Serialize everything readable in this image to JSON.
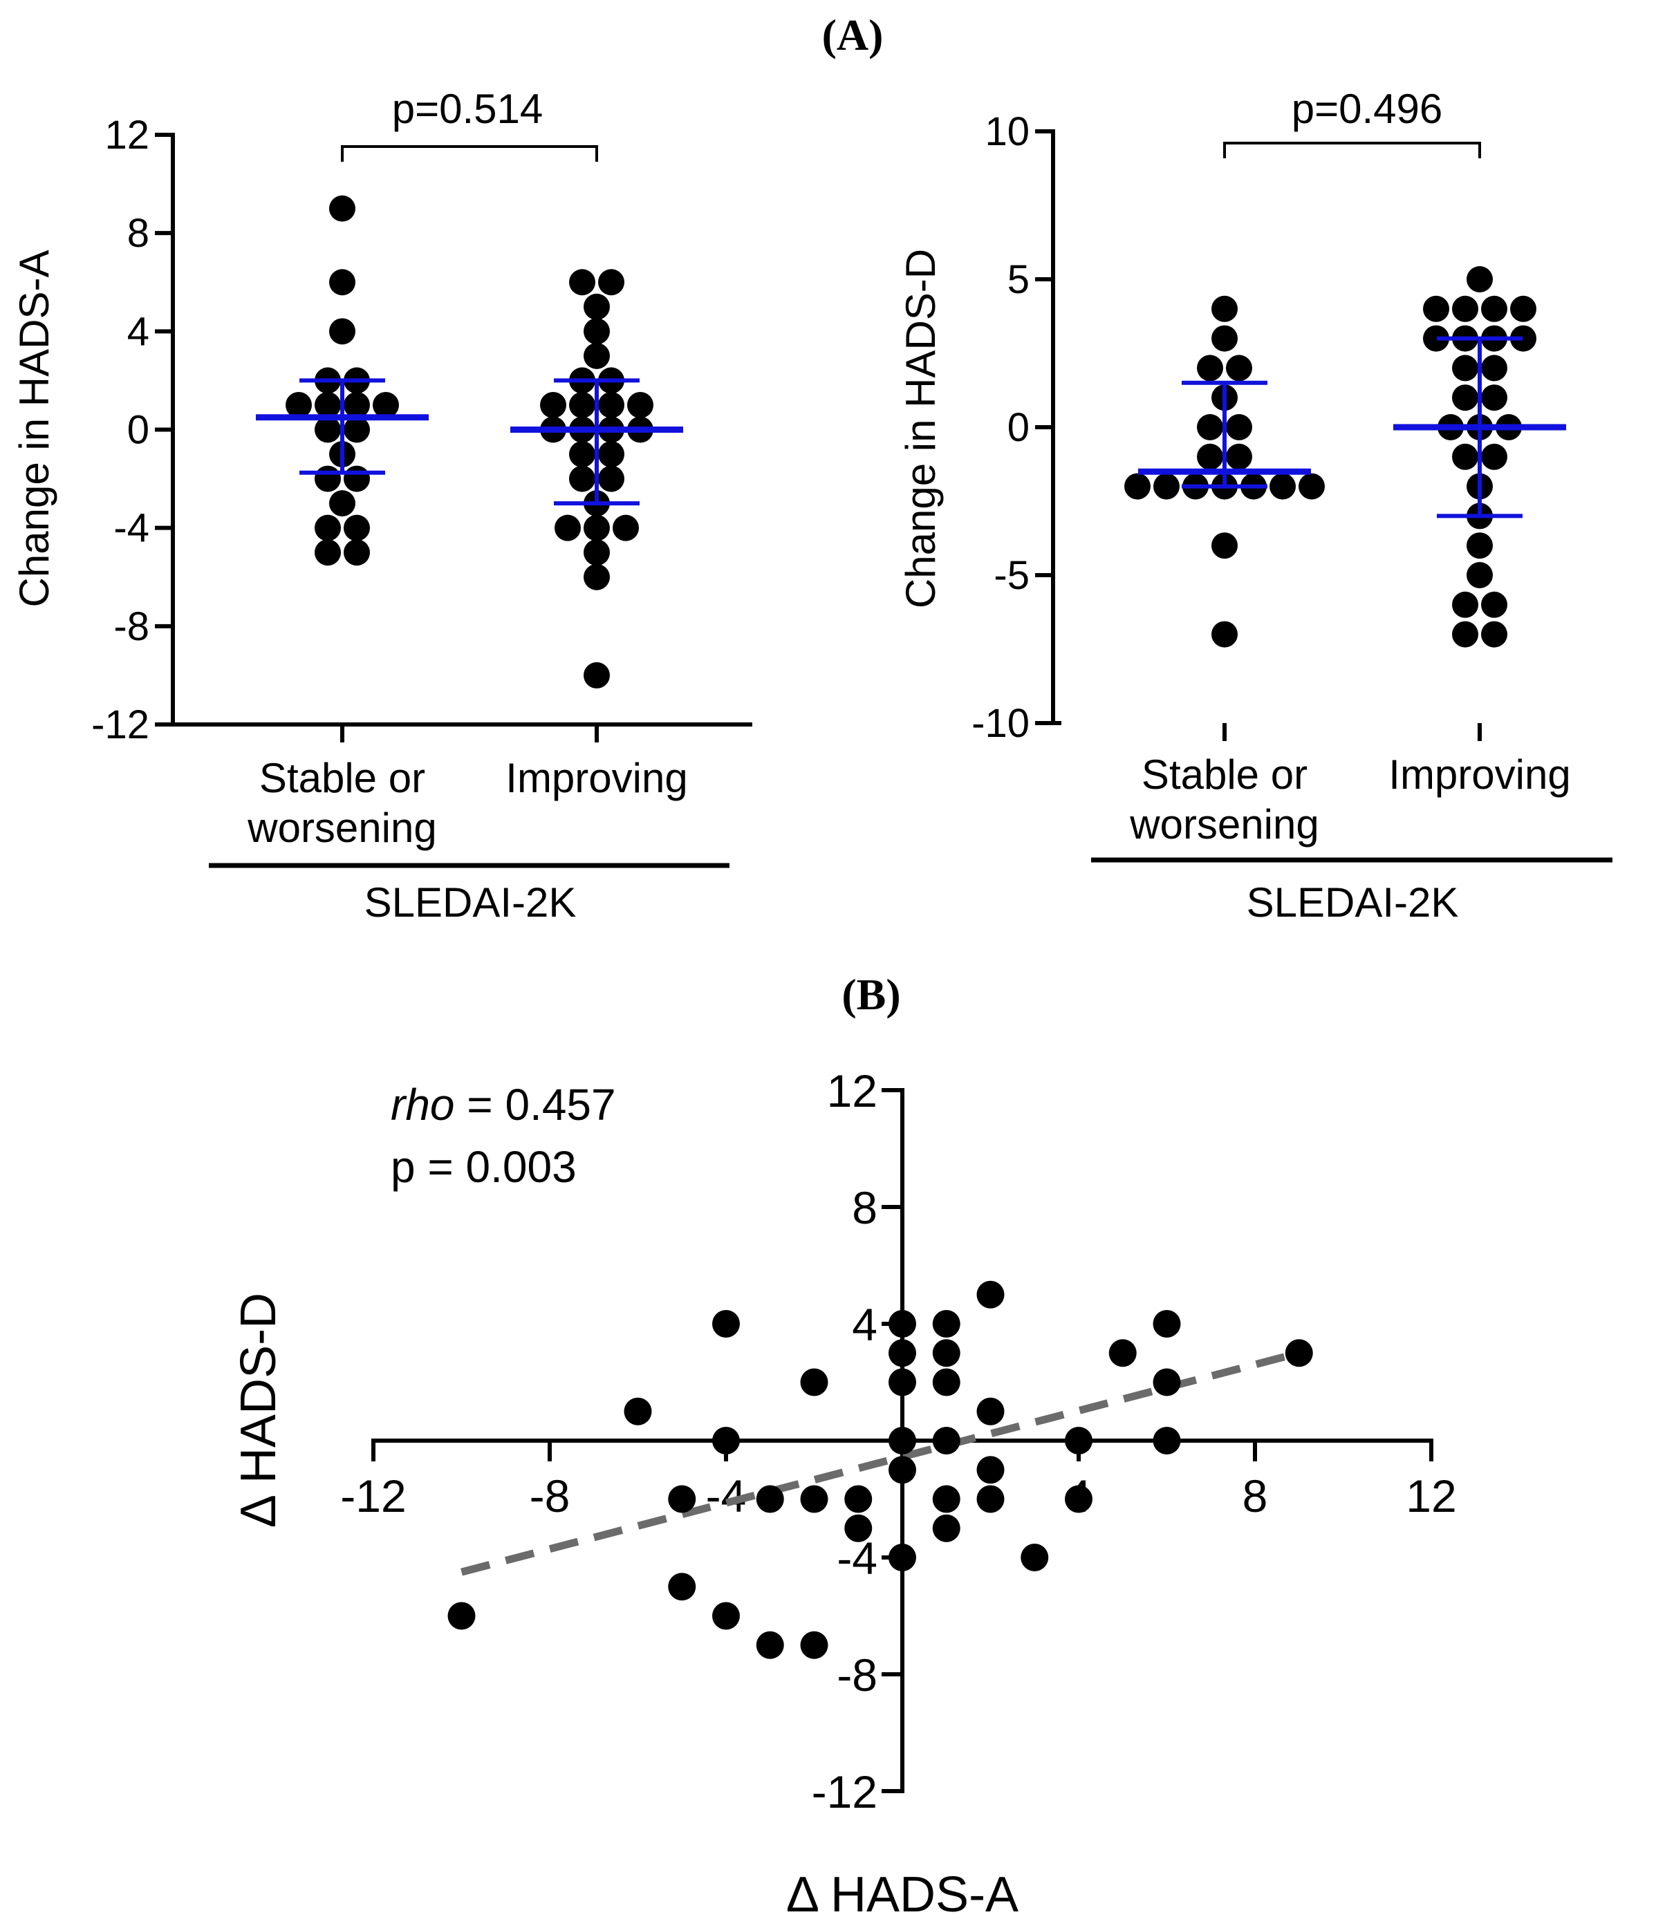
{
  "panel_labels": {
    "a": "(A)",
    "b": "(B)"
  },
  "chart_data": [
    {
      "type": "scatter",
      "subtype": "dot-plot",
      "ylabel": "Change in HADS-A",
      "yticks": [
        "12",
        "8",
        "4",
        "0",
        "-4",
        "-8",
        "-12"
      ],
      "ylim": [
        -12,
        12
      ],
      "categories": [
        "Stable or worsening",
        "Improving"
      ],
      "category_lines": [
        [
          "Stable or",
          "worsening"
        ],
        [
          "Improving"
        ]
      ],
      "group_label": "SLEDAI-2K",
      "comparison": "p=0.514",
      "series": [
        {
          "values": [
            9,
            6,
            4,
            2,
            2,
            1,
            1,
            1,
            1,
            0,
            0,
            -1,
            -2,
            -2,
            -3,
            -4,
            -4,
            -5,
            -5
          ],
          "median": 0.5,
          "q1": -1.75,
          "q3": 2
        },
        {
          "values": [
            6,
            6,
            5,
            4,
            3,
            2,
            2,
            1,
            1,
            1,
            1,
            0,
            0,
            0,
            0,
            -1,
            -1,
            -2,
            -2,
            -3,
            -4,
            -4,
            -4,
            -5,
            -6,
            -10
          ],
          "median": 0,
          "q1": -3,
          "q3": 2
        }
      ],
      "grid": false
    },
    {
      "type": "scatter",
      "subtype": "dot-plot",
      "ylabel": "Change in HADS-D",
      "yticks": [
        "10",
        "5",
        "0",
        "-5",
        "-10"
      ],
      "ylim": [
        -10,
        10
      ],
      "categories": [
        "Stable or worsening",
        "Improving"
      ],
      "category_lines": [
        [
          "Stable or",
          "worsening"
        ],
        [
          "Improving"
        ]
      ],
      "group_label": "SLEDAI-2K",
      "comparison": "p=0.496",
      "series": [
        {
          "values": [
            4,
            3,
            2,
            2,
            1,
            0,
            0,
            -1,
            -1,
            -2,
            -2,
            -2,
            -2,
            -2,
            -2,
            -2,
            -4,
            -7
          ],
          "median": -1.5,
          "q1": -2,
          "q3": 1.5
        },
        {
          "values": [
            5,
            4,
            4,
            4,
            4,
            3,
            3,
            3,
            3,
            2,
            2,
            1,
            1,
            0,
            0,
            0,
            -1,
            -1,
            -2,
            -3,
            -4,
            -5,
            -6,
            -6,
            -7,
            -7
          ],
          "median": 0,
          "q1": -3,
          "q3": 3
        }
      ],
      "grid": false
    },
    {
      "type": "scatter",
      "xlabel": "Δ HADS-A",
      "ylabel": "Δ HADS-D",
      "xticks": [
        "-12",
        "-8",
        "-4",
        "4",
        "8",
        "12"
      ],
      "yticks": [
        "12",
        "8",
        "4",
        "-4",
        "-8",
        "-12"
      ],
      "xlim": [
        -12,
        12
      ],
      "ylim": [
        -12,
        12
      ],
      "annotation": {
        "stat_name": "rho",
        "stat_value": " = 0.457",
        "p": "p = 0.003"
      },
      "points": [
        [
          -10,
          -6
        ],
        [
          -6,
          1
        ],
        [
          -5,
          -2
        ],
        [
          -5,
          -5
        ],
        [
          -4,
          4
        ],
        [
          -4,
          0
        ],
        [
          -4,
          -6
        ],
        [
          -3,
          -2
        ],
        [
          -3,
          -7
        ],
        [
          -2,
          2
        ],
        [
          -2,
          -2
        ],
        [
          -2,
          -7
        ],
        [
          -1,
          -2
        ],
        [
          -1,
          -3
        ],
        [
          0,
          4
        ],
        [
          0,
          3
        ],
        [
          0,
          2
        ],
        [
          0,
          0
        ],
        [
          0,
          -1
        ],
        [
          0,
          -4
        ],
        [
          1,
          4
        ],
        [
          1,
          3
        ],
        [
          1,
          2
        ],
        [
          1,
          0
        ],
        [
          1,
          -2
        ],
        [
          1,
          -3
        ],
        [
          2,
          5
        ],
        [
          2,
          1
        ],
        [
          2,
          -1
        ],
        [
          2,
          -2
        ],
        [
          3,
          -4
        ],
        [
          4,
          0
        ],
        [
          4,
          -2
        ],
        [
          5,
          3
        ],
        [
          6,
          4
        ],
        [
          6,
          2
        ],
        [
          6,
          0
        ],
        [
          9,
          3
        ]
      ],
      "trendline": {
        "style": "dashed",
        "color": "#6b6b6b",
        "x": [
          -10,
          9
        ],
        "y": [
          -4.5,
          3
        ]
      },
      "grid": false
    }
  ]
}
